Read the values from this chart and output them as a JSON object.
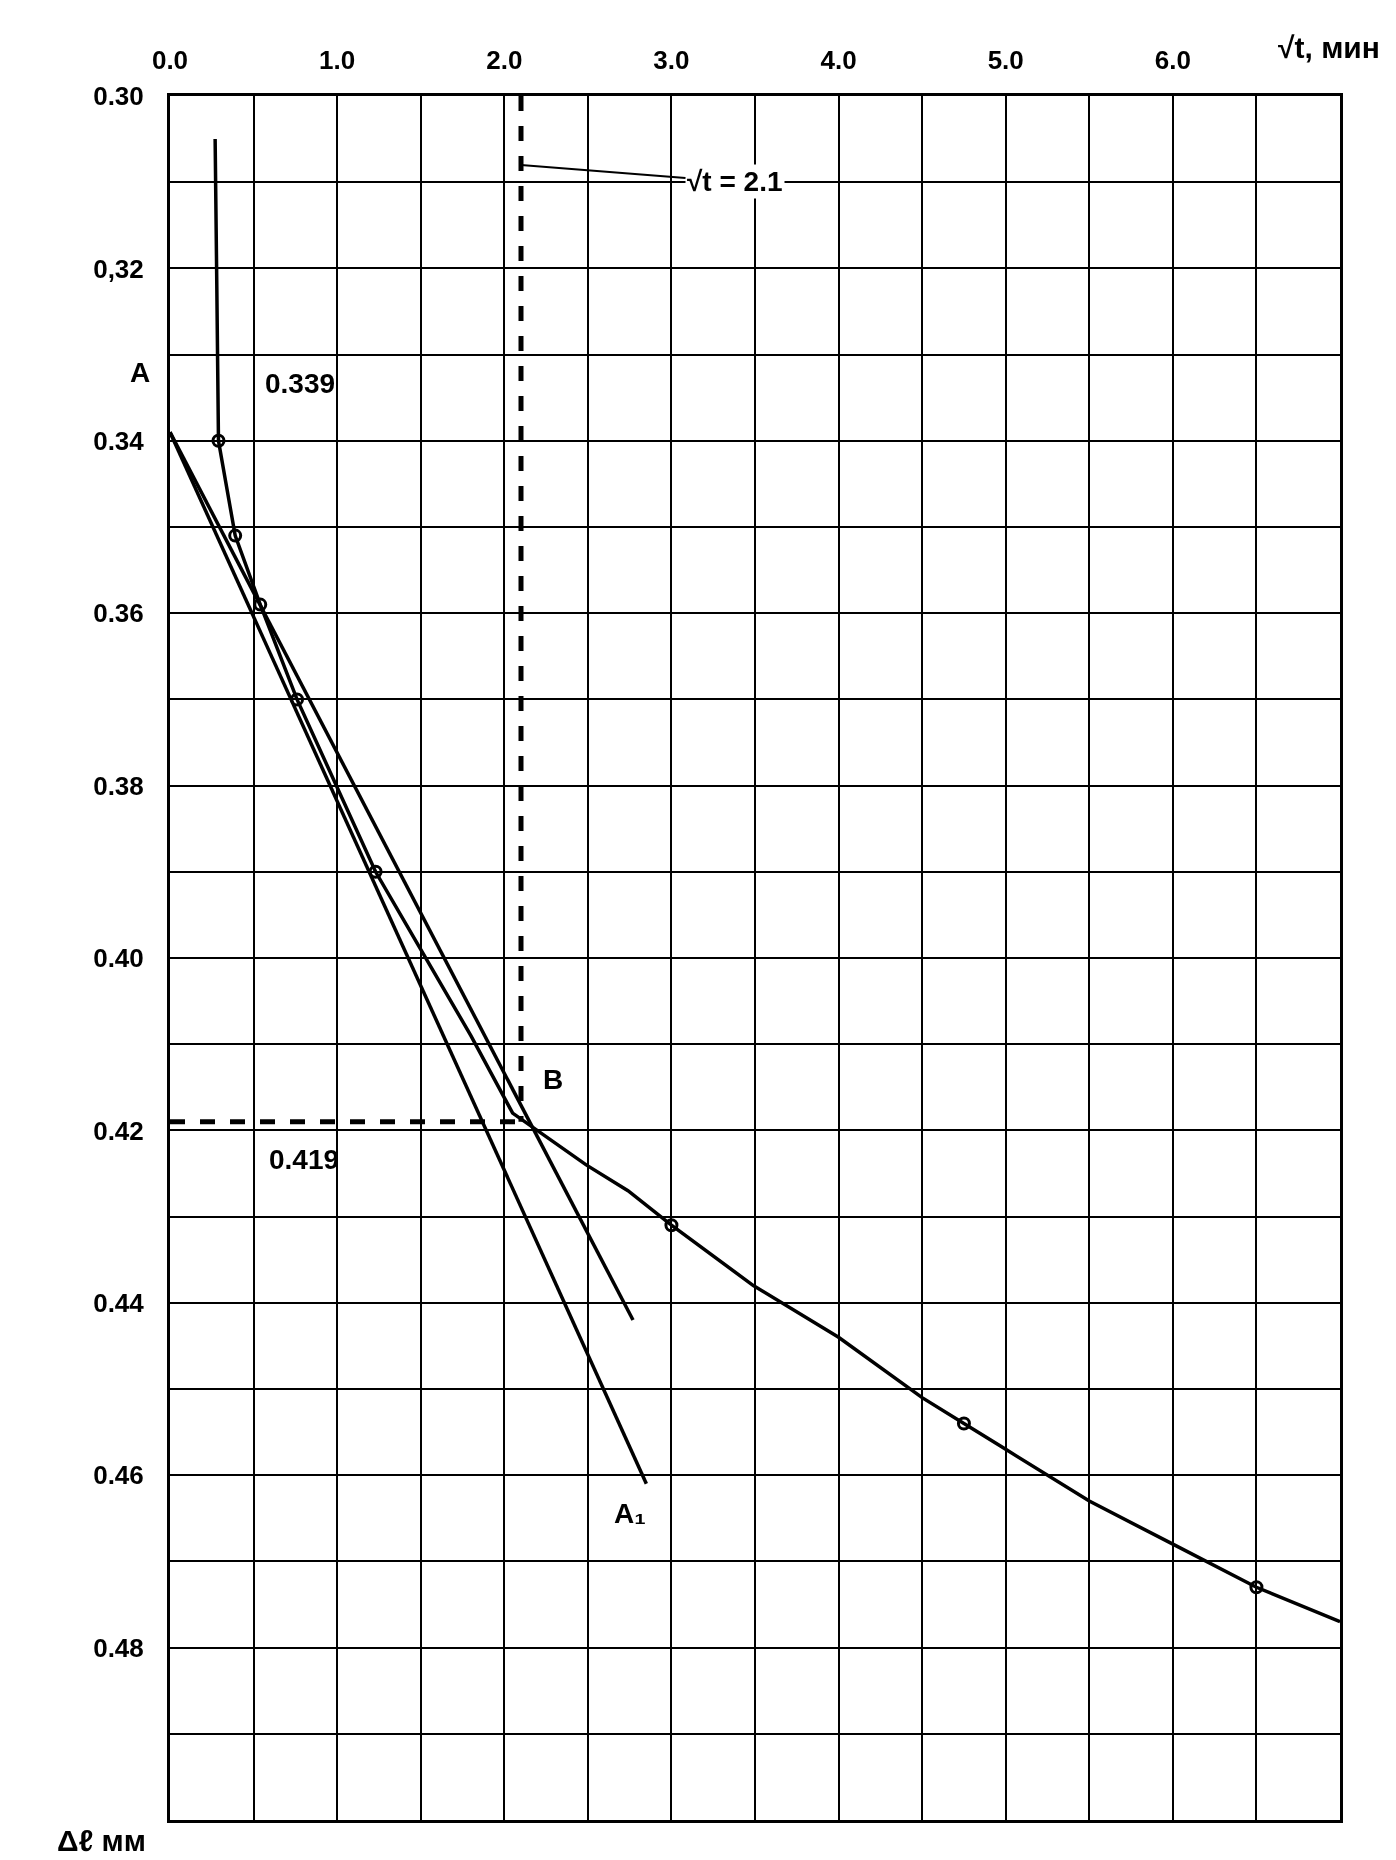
{
  "chart_data": {
    "type": "line",
    "xlabel": "√t, мин",
    "ylabel": "Δℓ мм",
    "xlim": [
      0,
      7
    ],
    "xticks": [
      {
        "value": 0,
        "label": "0.0"
      },
      {
        "value": 0.5,
        "label": null
      },
      {
        "value": 1,
        "label": "1.0"
      },
      {
        "value": 1.5,
        "label": null
      },
      {
        "value": 2,
        "label": "2.0"
      },
      {
        "value": 2.5,
        "label": null
      },
      {
        "value": 3,
        "label": "3.0"
      },
      {
        "value": 3.5,
        "label": null
      },
      {
        "value": 4,
        "label": "4.0"
      },
      {
        "value": 4.5,
        "label": null
      },
      {
        "value": 5,
        "label": "5.0"
      },
      {
        "value": 5.5,
        "label": null
      },
      {
        "value": 6,
        "label": "6.0"
      },
      {
        "value": 6.5,
        "label": null
      },
      {
        "value": 7,
        "label": null
      }
    ],
    "ylim": [
      0.5,
      0.3
    ],
    "yticks": [
      {
        "value": 0.3,
        "label": "0.30"
      },
      {
        "value": 0.31,
        "label": null
      },
      {
        "value": 0.32,
        "label": "0,32"
      },
      {
        "value": 0.33,
        "label": null
      },
      0.34,
      {
        "value": 0.35,
        "label": null
      },
      0.36,
      {
        "value": 0.37,
        "label": null
      },
      0.38,
      {
        "value": 0.39,
        "label": null
      },
      {
        "value": 0.4,
        "label": "0.40"
      },
      {
        "value": 0.41,
        "label": null
      },
      0.42,
      {
        "value": 0.43,
        "label": null
      },
      0.44,
      {
        "value": 0.45,
        "label": null
      },
      0.46,
      {
        "value": 0.47,
        "label": null
      },
      0.48,
      {
        "value": 0.49,
        "label": null
      },
      {
        "value": 0.5,
        "label": null
      }
    ],
    "grid": true,
    "series": [
      {
        "color": "#000000",
        "x": [
          0.27,
          0.28,
          0.29,
          0.39,
          0.54,
          0.76,
          1.23,
          1.5,
          1.8,
          2.05,
          2.49,
          2.74,
          3.0,
          3.49,
          4.0,
          4.5,
          4.75,
          5.0,
          5.5,
          6.0,
          6.5,
          7.0
        ],
        "values": [
          0.305,
          0.322,
          0.34,
          0.351,
          0.359,
          0.37,
          0.39,
          0.399,
          0.409,
          0.418,
          0.424,
          0.427,
          0.431,
          0.438,
          0.444,
          0.451,
          0.454,
          0.457,
          0.463,
          0.468,
          0.473,
          0.477
        ]
      },
      {
        "type": "scatter",
        "color": "#000000",
        "marker": "circle",
        "x": [
          0.29,
          0.39,
          0.54,
          0.76,
          1.23,
          3.0,
          4.75,
          6.5
        ],
        "values": [
          0.34,
          0.351,
          0.359,
          0.37,
          0.39,
          0.431,
          0.454,
          0.473
        ]
      },
      {
        "color": "#000000",
        "x": [
          0,
          2.85
        ],
        "values": [
          0.339,
          0.461
        ]
      },
      {
        "color": "#000000",
        "x": [
          0,
          2.77
        ],
        "values": [
          0.339,
          0.442
        ]
      },
      {
        "color": "#000000",
        "line_style": "dashed",
        "x": [
          2.1,
          2.1
        ],
        "values": [
          0.3,
          0.419
        ]
      },
      {
        "color": "#000000",
        "line_style": "dashed",
        "x": [
          0,
          2.1
        ],
        "values": [
          0.419,
          0.419
        ]
      }
    ],
    "annotations": [
      {
        "text": "A",
        "x": 0,
        "y": 0.339
      },
      "0.339",
      {
        "text": "√t = 2.1",
        "x": 2.1,
        "y": 0.308
      },
      {
        "text": "B",
        "x": 2.05,
        "y": 0.418
      },
      {
        "text": "0.419",
        "x": 0.8,
        "y": 0.419
      },
      {
        "text": "A₁",
        "x": 2.85,
        "y": 0.461
      }
    ]
  }
}
